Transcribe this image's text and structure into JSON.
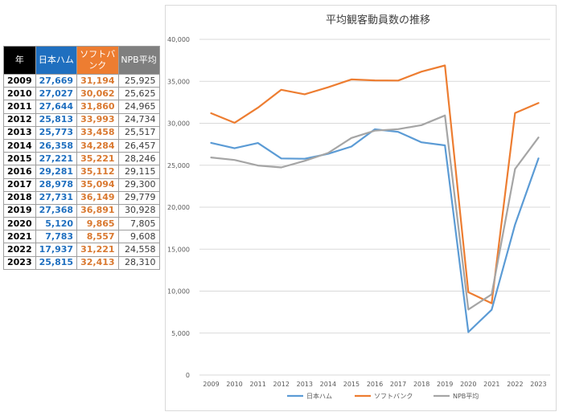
{
  "table": {
    "headers": {
      "year": "年",
      "nh": "日本ハム",
      "sb_line1": "ソフトバ",
      "sb_line2": "ンク",
      "npb": "NPB平均"
    },
    "rows": [
      {
        "year": "2009",
        "nh": "27,669",
        "sb": "31,194",
        "npb": "25,925"
      },
      {
        "year": "2010",
        "nh": "27,027",
        "sb": "30,062",
        "npb": "25,625"
      },
      {
        "year": "2011",
        "nh": "27,644",
        "sb": "31,860",
        "npb": "24,965"
      },
      {
        "year": "2012",
        "nh": "25,813",
        "sb": "33,993",
        "npb": "24,734"
      },
      {
        "year": "2013",
        "nh": "25,773",
        "sb": "33,458",
        "npb": "25,517"
      },
      {
        "year": "2014",
        "nh": "26,358",
        "sb": "34,284",
        "npb": "26,457"
      },
      {
        "year": "2015",
        "nh": "27,221",
        "sb": "35,221",
        "npb": "28,246"
      },
      {
        "year": "2016",
        "nh": "29,281",
        "sb": "35,112",
        "npb": "29,115"
      },
      {
        "year": "2017",
        "nh": "28,978",
        "sb": "35,094",
        "npb": "29,300"
      },
      {
        "year": "2018",
        "nh": "27,731",
        "sb": "36,149",
        "npb": "29,779"
      },
      {
        "year": "2019",
        "nh": "27,368",
        "sb": "36,891",
        "npb": "30,928"
      },
      {
        "year": "2020",
        "nh": "5,120",
        "sb": "9,865",
        "npb": "7,805"
      },
      {
        "year": "2021",
        "nh": "7,783",
        "sb": "8,557",
        "npb": "9,608"
      },
      {
        "year": "2022",
        "nh": "17,937",
        "sb": "31,221",
        "npb": "24,558"
      },
      {
        "year": "2023",
        "nh": "25,815",
        "sb": "32,413",
        "npb": "28,310"
      }
    ]
  },
  "chart_data": {
    "type": "line",
    "title": "平均観客動員数の推移",
    "xlabel": "",
    "ylabel": "",
    "ylim": [
      0,
      40000
    ],
    "y_ticks": [
      0,
      5000,
      10000,
      15000,
      20000,
      25000,
      30000,
      35000,
      40000
    ],
    "y_tick_labels": [
      "0",
      "5,000",
      "10,000",
      "15,000",
      "20,000",
      "25,000",
      "30,000",
      "35,000",
      "40,000"
    ],
    "categories": [
      "2009",
      "2010",
      "2011",
      "2012",
      "2013",
      "2014",
      "2015",
      "2016",
      "2017",
      "2018",
      "2019",
      "2020",
      "2021",
      "2022",
      "2023"
    ],
    "grid": true,
    "legend_position": "bottom",
    "series": [
      {
        "name": "日本ハム",
        "color": "#5b9bd5",
        "values": [
          27669,
          27027,
          27644,
          25813,
          25773,
          26358,
          27221,
          29281,
          28978,
          27731,
          27368,
          5120,
          7783,
          17937,
          25815
        ]
      },
      {
        "name": "ソフトバンク",
        "color": "#ed7d31",
        "values": [
          31194,
          30062,
          31860,
          33993,
          33458,
          34284,
          35221,
          35112,
          35094,
          36149,
          36891,
          9865,
          8557,
          31221,
          32413
        ]
      },
      {
        "name": "NPB平均",
        "color": "#a5a5a5",
        "values": [
          25925,
          25625,
          24965,
          24734,
          25517,
          26457,
          28246,
          29115,
          29300,
          29779,
          30928,
          7805,
          9608,
          24558,
          28310
        ]
      }
    ]
  }
}
